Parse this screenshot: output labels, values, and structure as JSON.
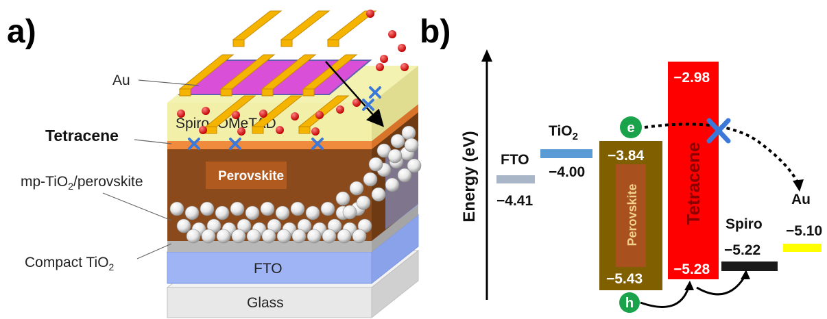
{
  "panel_a": {
    "label": "a)",
    "layers": {
      "au": "Au",
      "spiro": "Spiro–OMeTAD",
      "tetracene": "Tetracene",
      "perovskite": "Perovskite",
      "mp_tio2_base": "mp-TiO",
      "mp_tio2_sub": "2",
      "mp_tio2_rest": "/perovskite",
      "compact_base": "Compact TiO",
      "compact_sub": "2",
      "fto": "FTO",
      "glass": "Glass"
    }
  },
  "panel_b": {
    "label": "b)",
    "axis_label": "Energy (eV)",
    "materials": {
      "fto": {
        "name": "FTO",
        "level": "−4.41"
      },
      "tio2": {
        "name_base": "TiO",
        "name_sub": "2",
        "level": "−4.00"
      },
      "perovskite": {
        "name": "Perovskite",
        "top": "−3.84",
        "bottom": "−5.43"
      },
      "tetracene": {
        "name": "Tetracene",
        "top": "−2.98",
        "bottom": "−5.28"
      },
      "spiro": {
        "name": "Spiro",
        "level": "−5.22"
      },
      "au": {
        "name": "Au",
        "level": "−5.10"
      }
    },
    "carriers": {
      "electron": "e",
      "hole": "h"
    },
    "colors": {
      "fto": "#a9b6c8",
      "tio2": "#5b9bd5",
      "perovskite": "#7f5f00",
      "tetracene": "#ff0000",
      "spiro": "#1a1a1a",
      "au": "#ffff00",
      "carrier": "#1aa34a",
      "block_x": "#3c78d8"
    }
  }
}
